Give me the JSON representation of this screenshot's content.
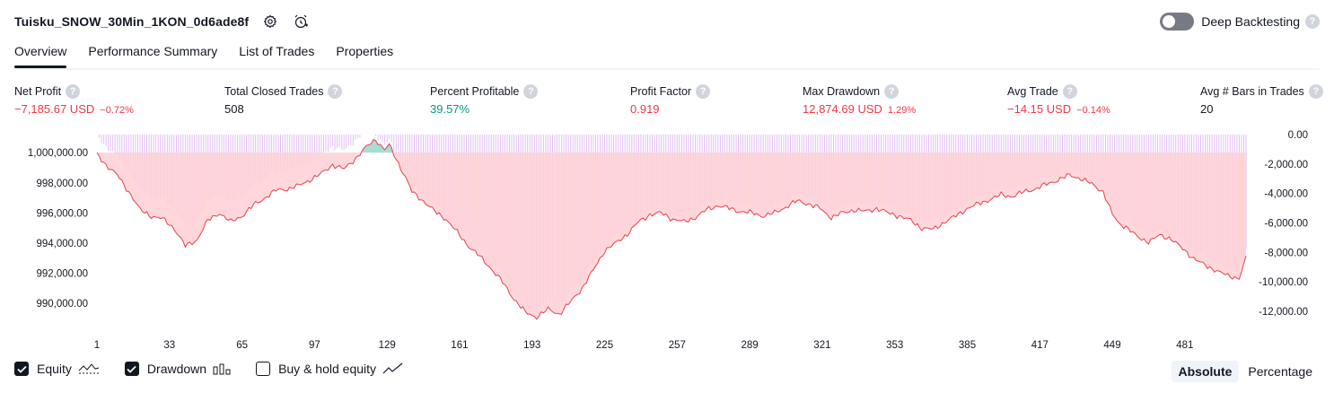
{
  "header": {
    "strategy_name": "Tuisku_SNOW_30Min_1KON_0d6ade8f",
    "deep_backtesting_label": "Deep Backtesting",
    "deep_backtesting_on": false,
    "help_symbol": "?"
  },
  "tabs": [
    {
      "label": "Overview",
      "active": true
    },
    {
      "label": "Performance Summary",
      "active": false
    },
    {
      "label": "List of Trades",
      "active": false
    },
    {
      "label": "Properties",
      "active": false
    }
  ],
  "metrics": {
    "net_profit": {
      "label": "Net Profit",
      "value": "−7,185.67 USD",
      "pct": "−0.72%"
    },
    "total_closed_trades": {
      "label": "Total Closed Trades",
      "value": "508"
    },
    "percent_profitable": {
      "label": "Percent Profitable",
      "value": "39.57%"
    },
    "profit_factor": {
      "label": "Profit Factor",
      "value": "0.919"
    },
    "max_drawdown": {
      "label": "Max Drawdown",
      "value": "12,874.69 USD",
      "pct": "1.29%"
    },
    "avg_trade": {
      "label": "Avg Trade",
      "value": "−14.15 USD",
      "pct": "−0.14%"
    },
    "avg_bars": {
      "label": "Avg # Bars in Trades",
      "value": "20"
    }
  },
  "legend": {
    "equity_label": "Equity",
    "drawdown_label": "Drawdown",
    "buy_hold_label": "Buy & hold equity",
    "equity_checked": true,
    "drawdown_checked": true,
    "buy_hold_checked": false
  },
  "modes": {
    "absolute": "Absolute",
    "percentage": "Percentage",
    "selected": "Absolute"
  },
  "colors": {
    "accent": "#131722",
    "negative": "#f23645",
    "positive": "#089981",
    "equity_line": "#e8404f",
    "equity_fill_loss": "#ffd0d4",
    "equity_fill_gain": "#9ed9cf",
    "drawdown_bar": "#d7a8f0"
  },
  "chart_data": {
    "type": "area",
    "series": [
      {
        "name": "Equity",
        "axis": "left",
        "unit": "USD"
      },
      {
        "name": "Drawdown",
        "axis": "right",
        "unit": "USD"
      }
    ],
    "baseline_equity": 1000000,
    "x_ticks": [
      "1",
      "33",
      "65",
      "97",
      "129",
      "161",
      "193",
      "225",
      "257",
      "289",
      "321",
      "353",
      "385",
      "417",
      "449",
      "481"
    ],
    "x_range": [
      1,
      508
    ],
    "y_left_ticks": [
      "1,000,000.00",
      "998,000.00",
      "996,000.00",
      "994,000.00",
      "992,000.00",
      "990,000.00"
    ],
    "y_left_range": [
      988700,
      1001200
    ],
    "y_right_ticks": [
      "0.00",
      "-2,000.00",
      "-4,000.00",
      "-6,000.00",
      "-8,000.00",
      "-10,000.00",
      "-12,000.00"
    ],
    "y_right_range": [
      -12800,
      0
    ],
    "equity_x": [
      1,
      5,
      10,
      16,
      20,
      25,
      30,
      35,
      40,
      45,
      50,
      55,
      60,
      65,
      70,
      75,
      80,
      85,
      90,
      95,
      100,
      105,
      110,
      115,
      120,
      124,
      126,
      128,
      130,
      133,
      137,
      140,
      145,
      150,
      155,
      160,
      165,
      170,
      175,
      180,
      185,
      190,
      195,
      200,
      205,
      210,
      215,
      220,
      225,
      230,
      235,
      240,
      245,
      250,
      255,
      260,
      265,
      270,
      275,
      280,
      285,
      290,
      295,
      300,
      305,
      310,
      315,
      320,
      325,
      330,
      335,
      340,
      345,
      350,
      355,
      360,
      365,
      370,
      375,
      380,
      385,
      390,
      395,
      400,
      405,
      410,
      415,
      420,
      425,
      430,
      435,
      440,
      445,
      449,
      452,
      455,
      460,
      465,
      470,
      475,
      480,
      485,
      490,
      495,
      500,
      505,
      508
    ],
    "equity_y": [
      999900,
      999200,
      998500,
      997200,
      996200,
      995800,
      995600,
      995000,
      993800,
      994200,
      995500,
      996000,
      995400,
      995800,
      996500,
      997000,
      997500,
      997600,
      997800,
      998200,
      998600,
      999200,
      998900,
      999600,
      1000400,
      1000900,
      1000500,
      1000200,
      1000500,
      999600,
      998400,
      997400,
      996800,
      996100,
      995600,
      994700,
      993800,
      993100,
      992300,
      991400,
      990300,
      989400,
      989100,
      989600,
      989300,
      990100,
      991000,
      992200,
      993500,
      994000,
      994600,
      995400,
      995900,
      996000,
      995600,
      995400,
      995700,
      996200,
      996500,
      996300,
      996100,
      996000,
      995800,
      996000,
      996400,
      996800,
      996600,
      996300,
      995700,
      996000,
      996200,
      996100,
      996300,
      996000,
      995800,
      995500,
      995000,
      994900,
      995400,
      995800,
      996300,
      996600,
      996900,
      997200,
      997100,
      997400,
      997600,
      997900,
      998200,
      998500,
      998300,
      997900,
      997400,
      995900,
      995300,
      995100,
      994400,
      994100,
      994500,
      994300,
      993600,
      993000,
      992500,
      992200,
      991800,
      991700,
      993000
    ],
    "drawdown_note": "Drawdown bars per trade, 0 at top, negative downward; depth equals running peak minus equity"
  }
}
